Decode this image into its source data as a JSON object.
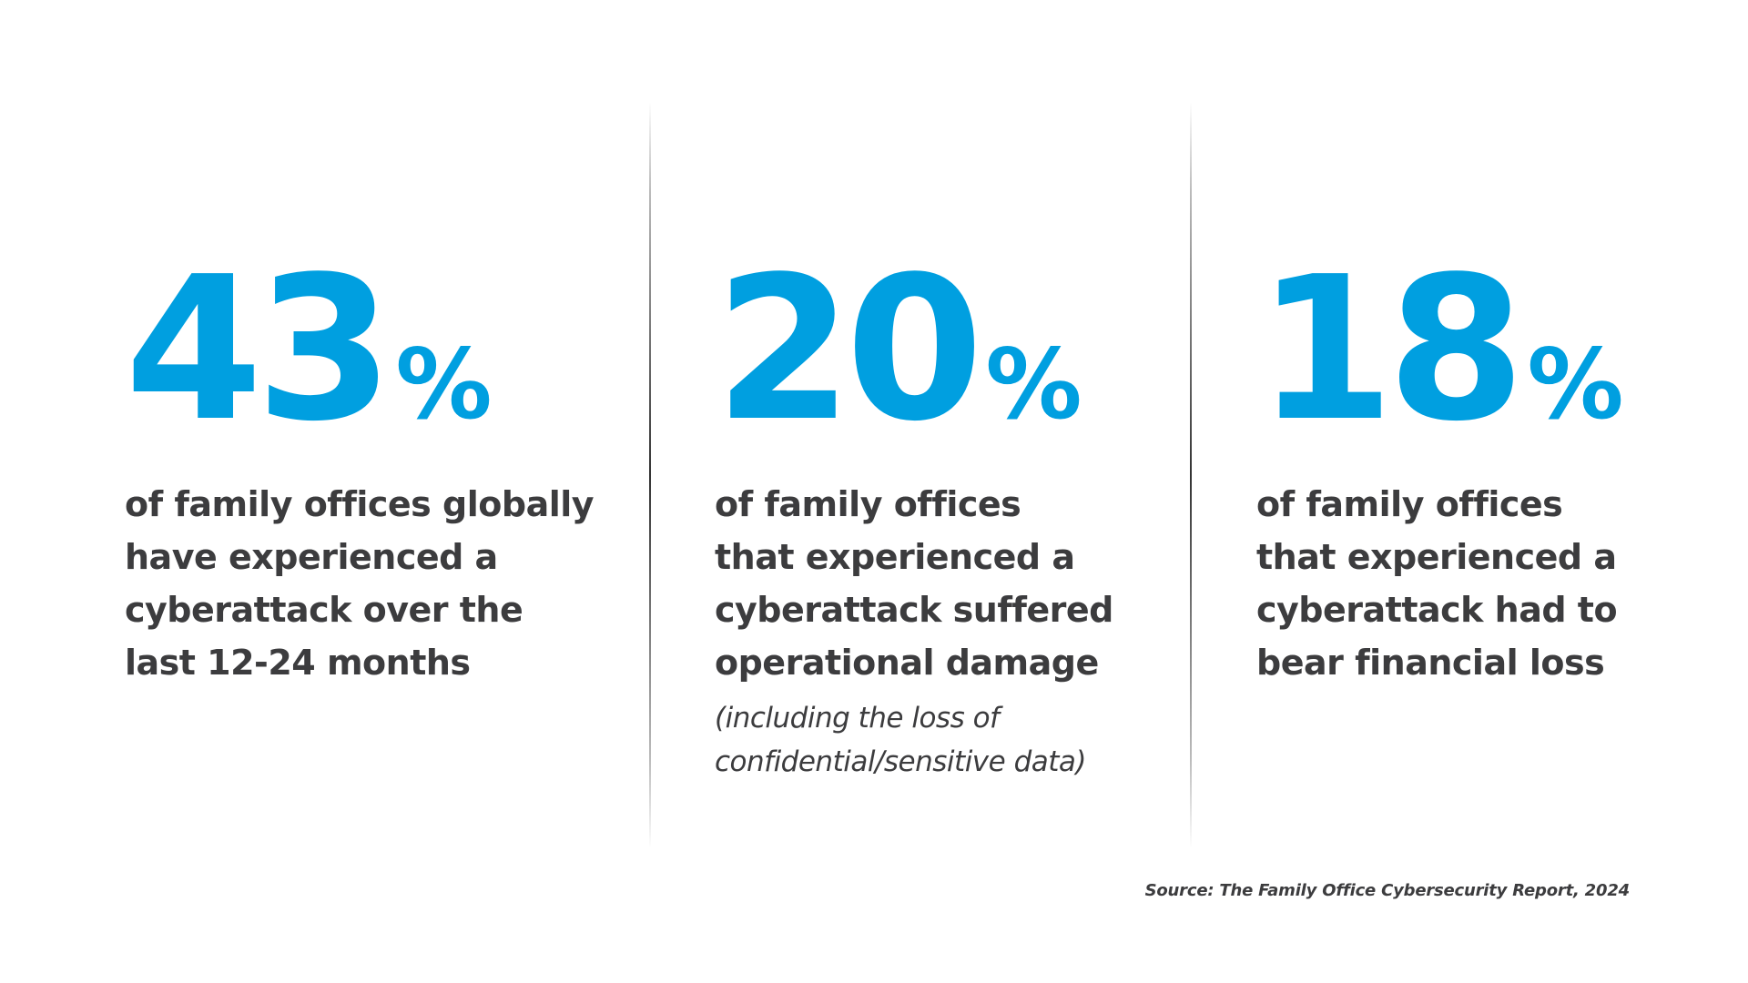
{
  "stats": [
    {
      "number": "43",
      "percent_sign": "%",
      "description_lines": [
        "of family offices globally",
        "have experienced a",
        "cyberattack over the",
        "last 12-24 months"
      ]
    },
    {
      "number": "20",
      "percent_sign": "%",
      "description_lines": [
        "of family offices",
        "that experienced a",
        "cyberattack suffered",
        "operational damage"
      ],
      "note_lines": [
        "(including the loss of",
        "confidential/sensitive data)"
      ]
    },
    {
      "number": "18",
      "percent_sign": "%",
      "description_lines": [
        "of family offices",
        "that experienced a",
        "cyberattack had to",
        "bear financial loss"
      ]
    }
  ],
  "source": "Source: The Family Office Cybersecurity Report, 2024",
  "colors": {
    "accent": "#009fe0",
    "text": "#3c3c3e",
    "background": "#ffffff"
  }
}
